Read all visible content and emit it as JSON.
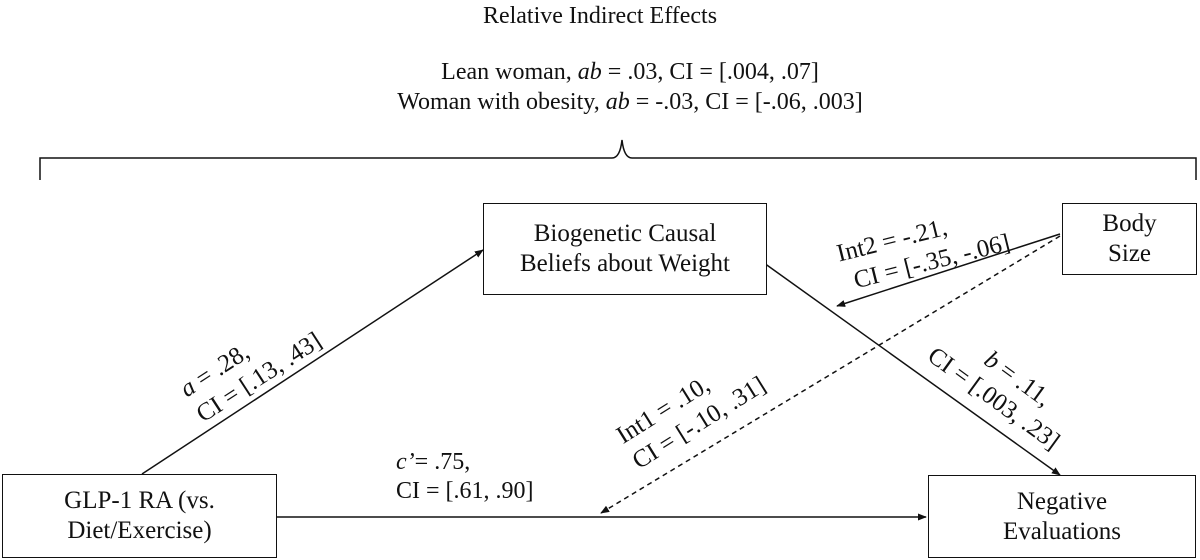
{
  "header": {
    "title": "Relative Indirect Effects",
    "line1": {
      "pre": "Lean woman, ",
      "ab": "ab",
      "post": " = .03, CI = [.004, .07]"
    },
    "line2": {
      "pre": "Woman with obesity,  ",
      "ab": "ab",
      "post": " =  -.03, CI = [-.06, .003]"
    }
  },
  "nodes": {
    "mediator": {
      "line1": "Biogenetic Causal",
      "line2": "Beliefs about Weight"
    },
    "moderator": {
      "line1": "Body",
      "line2": "Size"
    },
    "predictor": {
      "line1": "GLP-1 RA (vs.",
      "line2": "Diet/Exercise)"
    },
    "outcome": {
      "line1": "Negative",
      "line2": "Evaluations"
    }
  },
  "paths": {
    "a": {
      "sym": "a",
      "eq": " = .28,",
      "ci": "CI = [.13, .43]"
    },
    "b": {
      "sym": "b",
      "eq": " = .11,",
      "ci": "CI = [.003, .23]"
    },
    "c": {
      "sym": "c’",
      "eq": "= .75,",
      "ci": "CI = [.61, .90]"
    },
    "int1": {
      "eq": "Int1 = .10,",
      "ci": "CI = [-.10, .31]"
    },
    "int2": {
      "eq": "Int2 = -.21,",
      "ci": "CI = [-.35, -.06]"
    }
  }
}
